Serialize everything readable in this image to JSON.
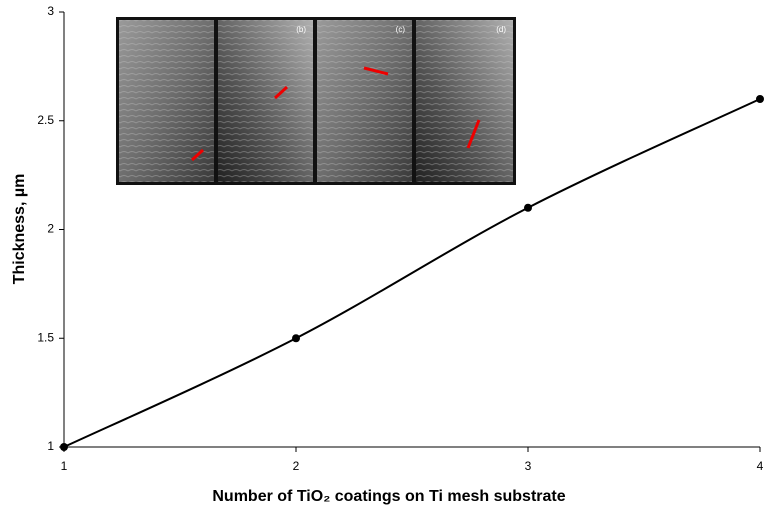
{
  "chart_data": {
    "type": "line",
    "x_label": "Number of TiO₂ coatings on Ti mesh substrate",
    "y_label": "Thickness, µm",
    "x": [
      1,
      2,
      3,
      4
    ],
    "series": [
      {
        "color": "#000000",
        "values": [
          1,
          1.5,
          2.1,
          2.6
        ]
      }
    ],
    "xlim": [
      1,
      4
    ],
    "xticks": [
      1,
      2,
      3,
      4
    ],
    "ylim": [
      1,
      3
    ],
    "yticks": [
      1,
      1.5,
      2,
      2.5,
      3
    ],
    "grid": false,
    "annotations": [
      "(b)",
      "(c)",
      "(d)"
    ]
  }
}
